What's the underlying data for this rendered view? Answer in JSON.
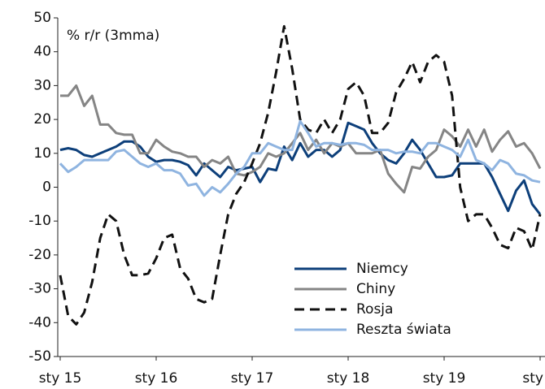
{
  "chart_data": {
    "type": "line",
    "annotation": "% r/r (3mma)",
    "categories": [
      "sty 15",
      null,
      null,
      null,
      null,
      null,
      null,
      null,
      null,
      null,
      null,
      null,
      "sty 16",
      null,
      null,
      null,
      null,
      null,
      null,
      null,
      null,
      null,
      null,
      null,
      "sty 17",
      null,
      null,
      null,
      null,
      null,
      null,
      null,
      null,
      null,
      null,
      null,
      "sty 18",
      null,
      null,
      null,
      null,
      null,
      null,
      null,
      null,
      null,
      null,
      null,
      "sty 19",
      null,
      null,
      null,
      null,
      null,
      null,
      null,
      null,
      null,
      null,
      null,
      "sty"
    ],
    "series": [
      {
        "name": "Niemcy",
        "color": "#0d3f7a",
        "dashed": false,
        "values": [
          11,
          11.5,
          11,
          9.5,
          9,
          10,
          11,
          12,
          13.5,
          13.5,
          12,
          9,
          7.5,
          8,
          8,
          7.5,
          6.5,
          3.5,
          7,
          5,
          3,
          6,
          5,
          5.5,
          6,
          1.5,
          5.5,
          5,
          12,
          8,
          13,
          9,
          11,
          11,
          9,
          11,
          19,
          18,
          17,
          13,
          10,
          8,
          7,
          10,
          14,
          11,
          7,
          3,
          3,
          3.5,
          7,
          7,
          7,
          7,
          3,
          -2,
          -7,
          -1,
          2,
          -5,
          -8
        ]
      },
      {
        "name": "Chiny",
        "color": "#858585",
        "dashed": false,
        "values": [
          27,
          27,
          30,
          24,
          27,
          18.5,
          18.5,
          16,
          15.5,
          15.5,
          10,
          10,
          14,
          12,
          10.5,
          10,
          9,
          9,
          6,
          8,
          7,
          9,
          4,
          3.5,
          4.5,
          6,
          10,
          9,
          10,
          13,
          16,
          11,
          14,
          10,
          13,
          12,
          13,
          10,
          10,
          10,
          11,
          4,
          1,
          -1.5,
          6,
          5.5,
          9,
          11,
          17,
          15,
          12,
          17,
          12,
          17,
          10.5,
          14,
          16.5,
          12,
          13,
          10,
          5.5
        ]
      },
      {
        "name": "Rosja",
        "color": "#111111",
        "dashed": true,
        "values": [
          -26,
          -38,
          -40.5,
          -37,
          -28,
          -15,
          -8,
          -10,
          -20,
          -26,
          -26,
          -25.5,
          -21,
          -15,
          -14,
          -24,
          -27,
          -33,
          -34,
          -33,
          -20,
          -8,
          -2,
          1.5,
          7,
          13,
          22,
          34,
          47.5,
          35,
          20,
          17,
          16,
          20,
          16,
          20,
          29,
          31,
          27,
          16,
          16,
          19,
          28,
          32,
          37,
          31,
          37,
          39,
          37,
          27,
          0,
          -10,
          -8,
          -8,
          -12,
          -17,
          -18,
          -12,
          -13,
          -18.5,
          -8
        ]
      },
      {
        "name": "Reszta świata",
        "color": "#8fb4e0",
        "dashed": false,
        "values": [
          7,
          4.5,
          6,
          8,
          8,
          8,
          8,
          10.5,
          11,
          9,
          7,
          6,
          7,
          5,
          5,
          4,
          0.5,
          1,
          -2.5,
          0,
          -1.5,
          1,
          4,
          6,
          10,
          10,
          13,
          12,
          11,
          11,
          19.5,
          16,
          12,
          13,
          13,
          12.5,
          13,
          13,
          12.5,
          11,
          11,
          11,
          10,
          10.5,
          10.5,
          10,
          13,
          13,
          12,
          11,
          9,
          14,
          8,
          7,
          5,
          8,
          7,
          4,
          3.5,
          2,
          1.5
        ]
      }
    ],
    "ylim": [
      -50,
      50
    ],
    "yticks": [
      -50,
      -40,
      -30,
      -20,
      -10,
      0,
      10,
      20,
      30,
      40,
      50
    ],
    "grid": false,
    "legend": "lower-right"
  }
}
